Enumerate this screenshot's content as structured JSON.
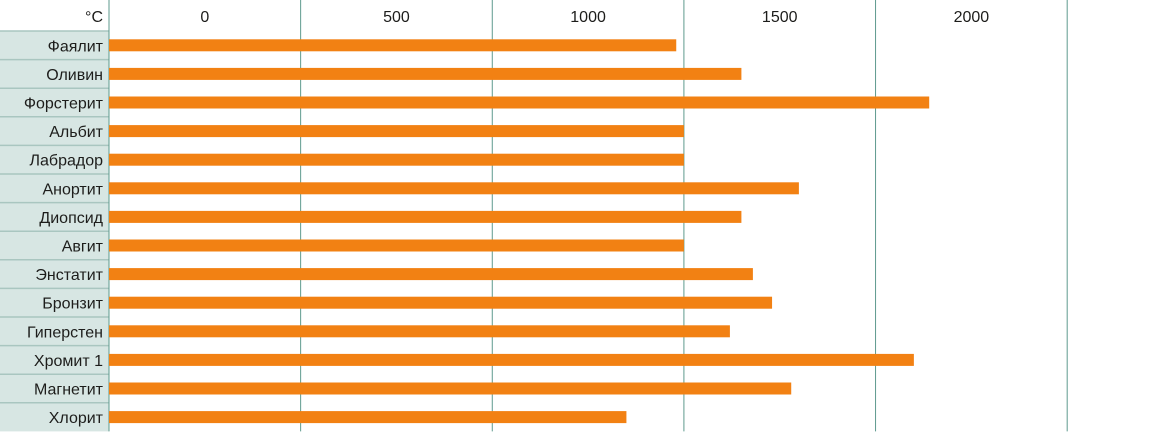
{
  "chart_data": {
    "type": "bar",
    "orientation": "horizontal",
    "unit": "°C",
    "categories": [
      "Фаялит",
      "Оливин",
      "Форстерит",
      "Альбит",
      "Лабрадор",
      "Анортит",
      "Диопсид",
      "Авгит",
      "Энстатит",
      "Бронзит",
      "Гиперстен",
      "Хромит 1",
      "Магнетит",
      "Хлорит"
    ],
    "values": [
      1230,
      1400,
      1890,
      1250,
      1250,
      1550,
      1400,
      1250,
      1430,
      1480,
      1370,
      1850,
      1530,
      1100
    ],
    "xlim": [
      -250,
      2500
    ],
    "xticks": [
      0,
      500,
      1000,
      1500,
      2000
    ],
    "xtick_labels": [
      "0",
      "500",
      "1000",
      "1500",
      "2000"
    ],
    "grid": true,
    "legend": "none"
  },
  "colors": {
    "bar": "#f28113",
    "label_cell": "#d7e6e3",
    "grid": "#5e9a8e",
    "row_divider": "#a9c6c0"
  }
}
